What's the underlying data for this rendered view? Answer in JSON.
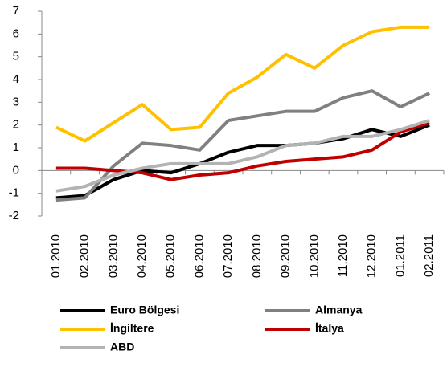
{
  "chart_data": {
    "type": "line",
    "categories": [
      "01.2010",
      "02.2010",
      "03.2010",
      "04.2010",
      "05.2010",
      "06.2010",
      "07.2010",
      "08.2010",
      "09.2010",
      "10.2010",
      "11.2010",
      "12.2010",
      "01.2011",
      "02.2011"
    ],
    "series": [
      {
        "name": "Euro Bölgesi",
        "color": "#000000",
        "values": [
          -1.2,
          -1.1,
          -0.4,
          0,
          -0.1,
          0.3,
          0.8,
          1.1,
          1.1,
          1.2,
          1.4,
          1.8,
          1.5,
          2.0
        ]
      },
      {
        "name": "Almanya",
        "color": "#808080",
        "values": [
          -1.3,
          -1.2,
          0.2,
          1.2,
          1.1,
          0.9,
          2.2,
          2.4,
          2.6,
          2.6,
          3.2,
          3.5,
          2.8,
          3.4
        ]
      },
      {
        "name": "İngiltere",
        "color": "#ffc000",
        "values": [
          1.9,
          1.3,
          2.1,
          2.9,
          1.8,
          1.9,
          3.4,
          4.1,
          5.1,
          4.5,
          5.5,
          6.1,
          6.3,
          6.3
        ]
      },
      {
        "name": "İtalya",
        "color": "#c00000",
        "values": [
          0.1,
          0.1,
          0,
          -0.1,
          -0.4,
          -0.2,
          -0.1,
          0.2,
          0.4,
          0.5,
          0.6,
          0.9,
          1.7,
          2.1
        ]
      },
      {
        "name": "ABD",
        "color": "#b3b3b3",
        "values": [
          -0.9,
          -0.7,
          -0.2,
          0.1,
          0.3,
          0.3,
          0.3,
          0.6,
          1.1,
          1.2,
          1.5,
          1.5,
          1.8,
          2.2
        ]
      }
    ],
    "ylim": [
      -2,
      7
    ],
    "yticks": [
      -2,
      -1,
      0,
      1,
      2,
      3,
      4,
      5,
      6,
      7
    ]
  }
}
